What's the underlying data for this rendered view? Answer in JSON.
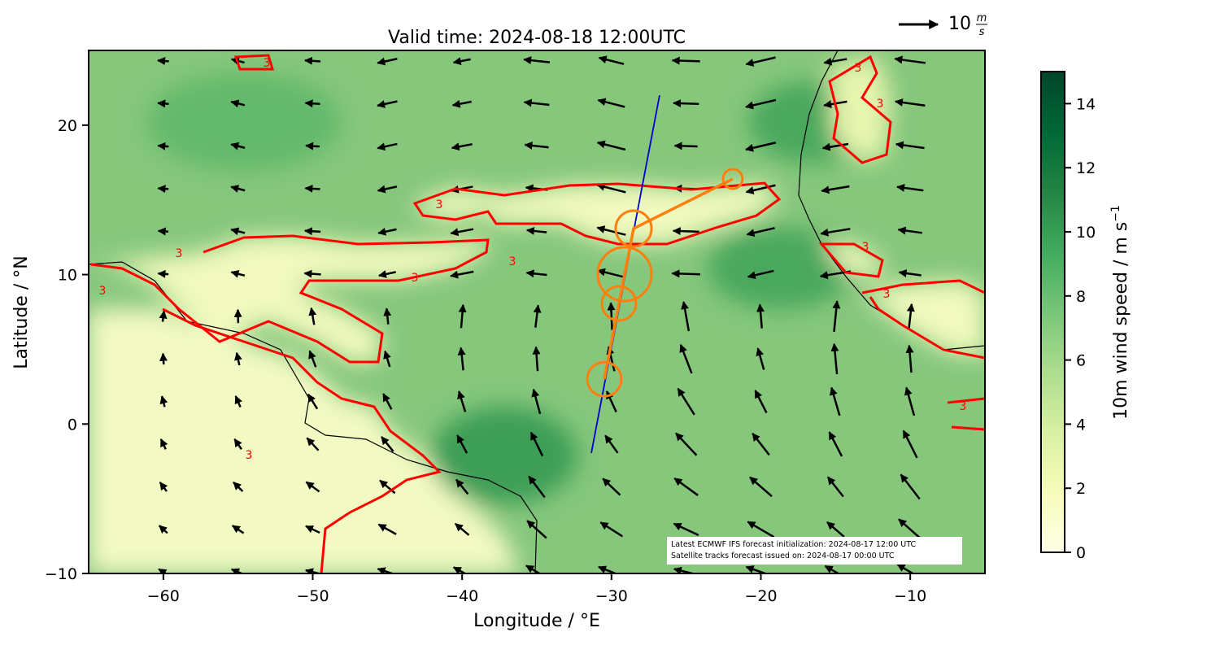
{
  "chart_data": {
    "type": "map",
    "title": "Valid time: 2024-08-18 12:00UTC",
    "xlabel": "Longitude / °E",
    "ylabel": "Latitude / °N",
    "xlim": [
      -65,
      -5
    ],
    "ylim": [
      -10,
      25
    ],
    "xticks": [
      {
        "value": -60,
        "label": "−60"
      },
      {
        "value": -50,
        "label": "−50"
      },
      {
        "value": -40,
        "label": "−40"
      },
      {
        "value": -30,
        "label": "−30"
      },
      {
        "value": -20,
        "label": "−20"
      },
      {
        "value": -10,
        "label": "−10"
      }
    ],
    "yticks": [
      {
        "value": -10,
        "label": "−10"
      },
      0,
      10,
      20
    ],
    "contour": {
      "level": 3,
      "color": "#ff0000"
    },
    "quiver_key": {
      "value": 10,
      "unit": "m",
      "per": "s"
    },
    "colorbar": {
      "label": "10m wind speed / m s",
      "label_sup": "−1",
      "lim": [
        0,
        15
      ],
      "ticks": [
        0,
        2,
        4,
        6,
        8,
        10,
        12,
        14
      ],
      "colors": [
        "#ffffe5",
        "#f7fcb9",
        "#d9f0a3",
        "#addd8e",
        "#78c679",
        "#41ab5d",
        "#238443",
        "#006837",
        "#004529"
      ]
    },
    "tracks": [
      {
        "color": "#0000cc",
        "lon": [
          -31.35,
          -26.78
        ],
        "lat": [
          -1.94,
          22.0
        ]
      },
      {
        "color": "#ff7f0e",
        "lon": [
          -30.48,
          -29.5,
          -29.12,
          -28.52,
          -21.88
        ],
        "lat": [
          3.0,
          8.07,
          10.03,
          13.08,
          16.4
        ],
        "radius": [
          1.14,
          1.14,
          1.8,
          1.2,
          0.65
        ]
      }
    ],
    "annotation": [
      "Latest ECMWF IFS forecast initialization: 2024-08-17 12:00 UTC",
      "Satellite tracks forecast issued on: 2024-08-17 00:00 UTC"
    ]
  }
}
